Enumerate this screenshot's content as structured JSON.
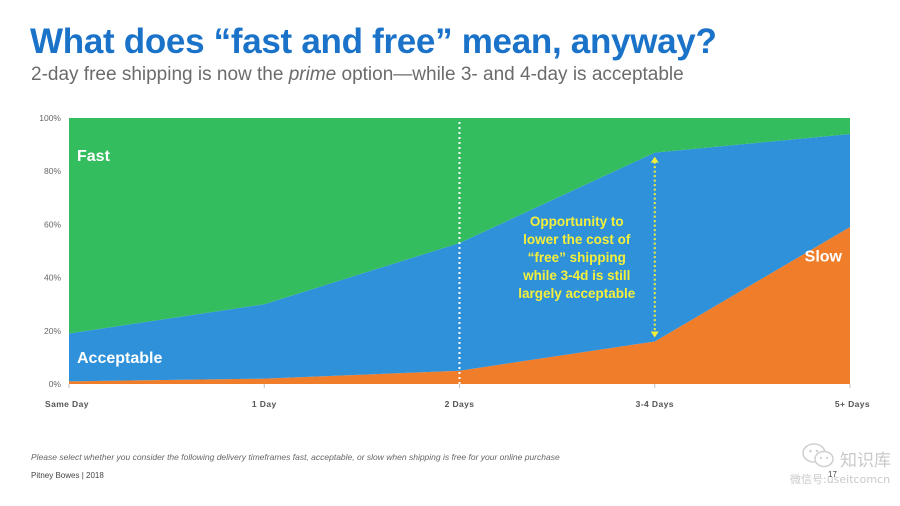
{
  "header": {
    "title": "What does “fast and free” mean, anyway?",
    "subtitle_before": "2-day free shipping is now the ",
    "subtitle_emphasis": "prime",
    "subtitle_after": " option—while 3- and 4-day is acceptable"
  },
  "chart_data": {
    "type": "area",
    "stacked": true,
    "percent": true,
    "categories": [
      "Same Day",
      "1 Day",
      "2 Days",
      "3-4 Days",
      "5+ Days"
    ],
    "series": [
      {
        "name": "Slow",
        "values": [
          1,
          2,
          5,
          16,
          59
        ],
        "color": "#ef7d2a"
      },
      {
        "name": "Acceptable",
        "values": [
          18,
          28,
          48,
          71,
          35
        ],
        "color": "#2e91d9"
      },
      {
        "name": "Fast",
        "values": [
          81,
          70,
          47,
          13,
          6
        ],
        "color": "#34bd5e"
      }
    ],
    "ylim": [
      0,
      100
    ],
    "yticks": [
      "0%",
      "20%",
      "40%",
      "60%",
      "80%",
      "100%"
    ],
    "ytick_values": [
      0,
      20,
      40,
      60,
      80,
      100
    ],
    "grid": false,
    "divider_after_category": "2 Days",
    "annotation": {
      "lines": [
        "Opportunity to",
        "lower the cost of",
        "“free” shipping",
        "while 3-4d is still",
        "largely acceptable"
      ],
      "color": "#f5ef3c",
      "arrow_category": "3-4 Days"
    }
  },
  "footer": {
    "note": "Please select whether you consider the following delivery timeframes fast, acceptable, or slow when shipping is free for your online purchase",
    "source": "Pitney Bowes | 2018",
    "page_number": "17"
  },
  "watermark": {
    "brand": "知识库",
    "account": "微信号:useitcomcn",
    "icon": "wechat-icon"
  }
}
